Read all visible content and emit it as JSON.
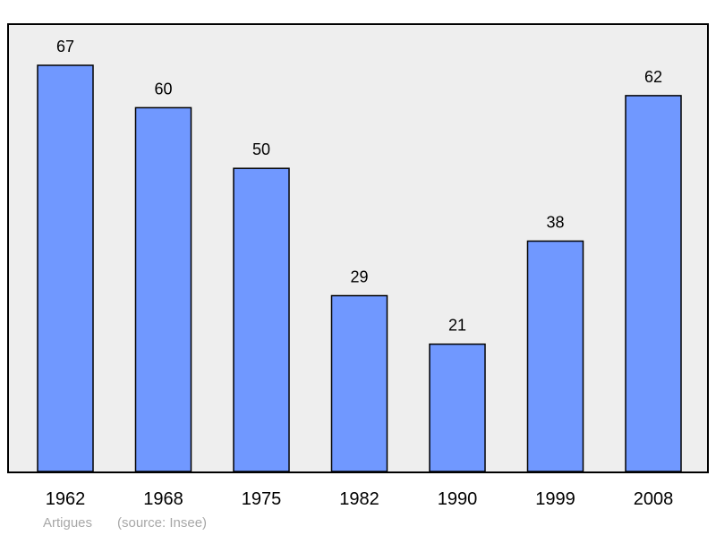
{
  "chart_data": {
    "type": "bar",
    "categories": [
      "1962",
      "1968",
      "1975",
      "1982",
      "1990",
      "1999",
      "2008"
    ],
    "values": [
      67,
      60,
      50,
      29,
      21,
      38,
      62
    ],
    "title": "",
    "xlabel": "",
    "ylabel": "",
    "ylim": [
      0,
      67
    ],
    "grid": false,
    "legend": "none"
  },
  "caption": {
    "place": "Artigues",
    "source": "(source: Insee)"
  },
  "colors": {
    "bar_fill": "#7098ff",
    "bar_stroke": "#000000",
    "plot_background": "#eeeeee",
    "caption_text": "#a8a8a8"
  }
}
